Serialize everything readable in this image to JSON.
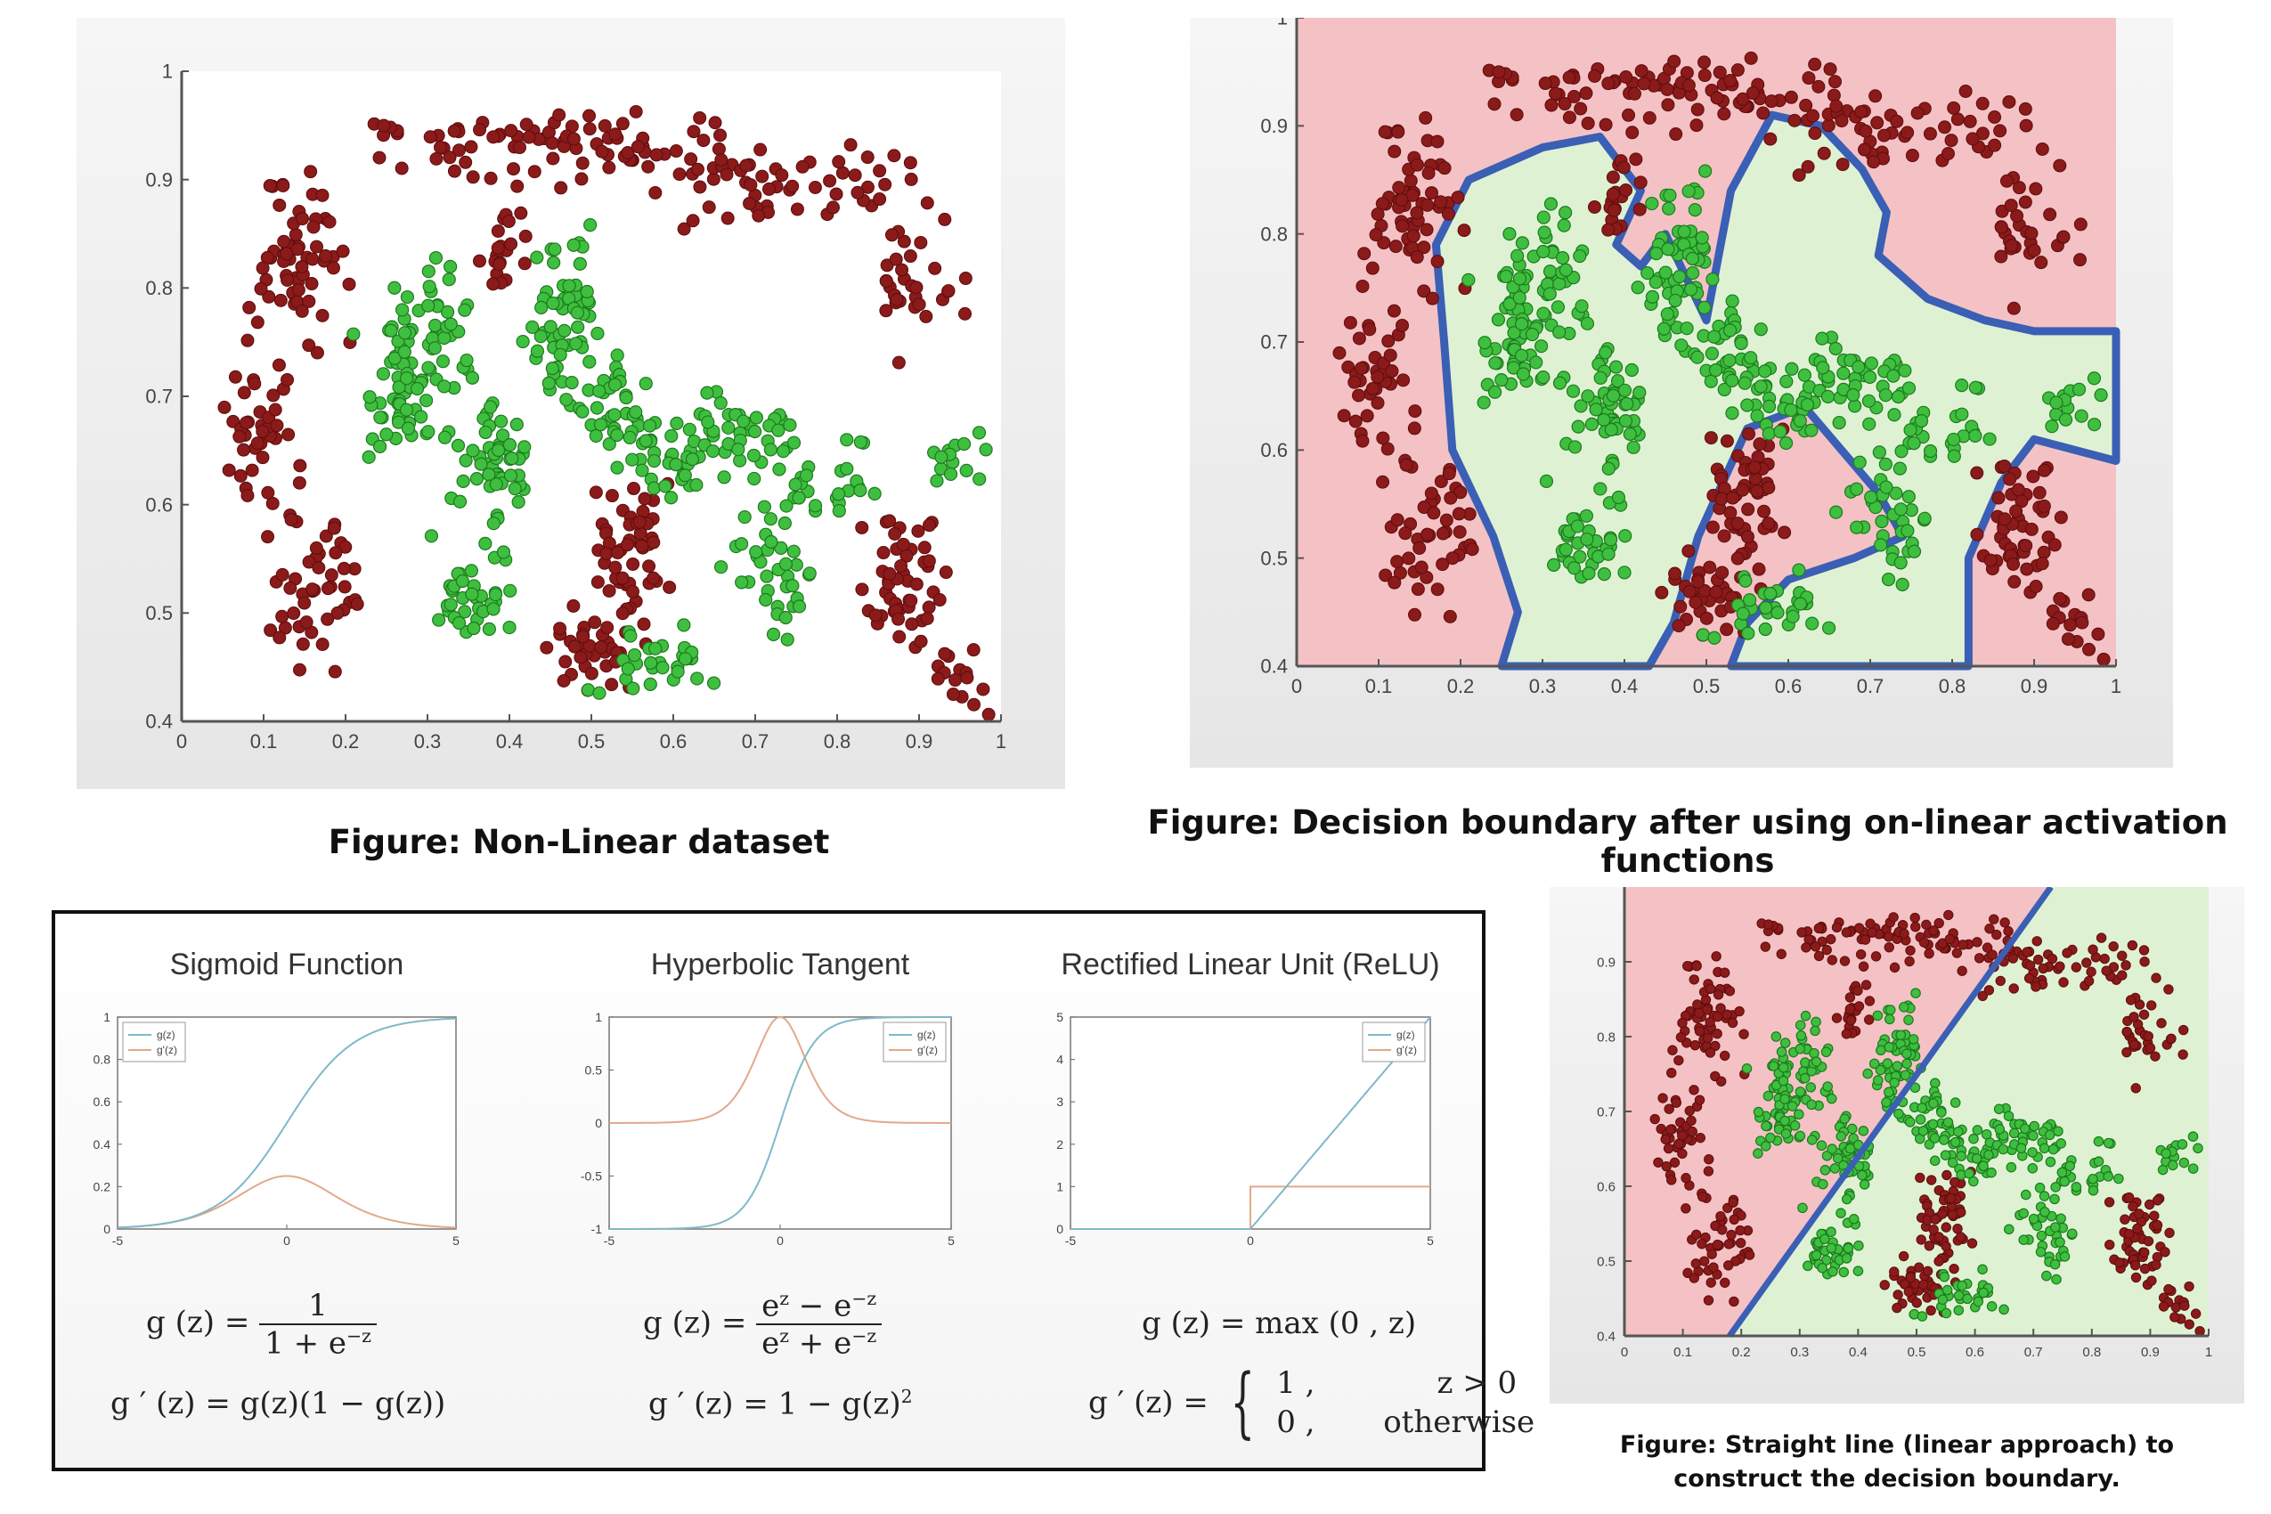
{
  "captions": {
    "dataset": "Figure: Non-Linear dataset",
    "boundary": "Figure: Decision boundary after using on-linear activation functions",
    "linear_line1": "Figure: Straight line (linear approach) to",
    "linear_line2": "construct the decision boundary."
  },
  "formulas": {
    "sigmoid_g_lhs": "g (z) =",
    "sigmoid_g_num": "1",
    "sigmoid_g_den": "1 + e",
    "sigmoid_g_den_sup": "−z",
    "sigmoid_dg": "g ′ (z) =  g(z)(1 − g(z))",
    "tanh_g_lhs": "g (z) =",
    "tanh_g_num_a": "e",
    "tanh_g_num_sup1": "z",
    "tanh_g_num_b": " − e",
    "tanh_g_num_sup2": "−z",
    "tanh_g_den_a": "e",
    "tanh_g_den_sup1": "z",
    "tanh_g_den_b": " + e",
    "tanh_g_den_sup2": "−z",
    "tanh_dg": "g ′ (z) =  1 − g(z)",
    "tanh_dg_sup": "2",
    "relu_g": "g (z) =  max (0 , z)",
    "relu_dg_lhs": "g ′ (z) =",
    "relu_case1_val": "1 ,",
    "relu_case1_cond": "z > 0",
    "relu_case2_val": "0 ,",
    "relu_case2_cond": "otherwise"
  },
  "chart_data": [
    {
      "id": "non-linear-dataset",
      "type": "scatter",
      "title": "",
      "xlim": [
        0,
        1
      ],
      "ylim": [
        0.4,
        1
      ],
      "x_ticks": [
        "0",
        "0.1",
        "0.2",
        "0.3",
        "0.4",
        "0.5",
        "0.6",
        "0.7",
        "0.8",
        "0.9",
        "1"
      ],
      "y_ticks": [
        "0.4",
        "0.5",
        "0.6",
        "0.7",
        "0.8",
        "0.9",
        "1"
      ],
      "background": "#ffffff",
      "colors": {
        "class_a": "#8b1a1a",
        "class_b": "#2ea82e"
      },
      "point_counts_approx": {
        "class_a": 560,
        "class_b": 420
      }
    },
    {
      "id": "nonlinear-decision-boundary",
      "type": "scatter",
      "title": "",
      "xlim": [
        0,
        1
      ],
      "ylim": [
        0.4,
        1
      ],
      "x_ticks": [
        "0",
        "0.1",
        "0.2",
        "0.3",
        "0.4",
        "0.5",
        "0.6",
        "0.7",
        "0.8",
        "0.9",
        "1"
      ],
      "y_ticks": [
        "0.4",
        "0.5",
        "0.6",
        "0.7",
        "0.8",
        "0.9",
        "1"
      ],
      "region_colors": {
        "class_a": "#f4c2c4",
        "class_b": "#def2d3"
      },
      "boundary_color": "#3a5fb5",
      "boundary_polygon_main": [
        [
          0.25,
          0.4
        ],
        [
          0.27,
          0.45
        ],
        [
          0.24,
          0.52
        ],
        [
          0.19,
          0.6
        ],
        [
          0.18,
          0.7
        ],
        [
          0.17,
          0.79
        ],
        [
          0.21,
          0.85
        ],
        [
          0.3,
          0.88
        ],
        [
          0.37,
          0.89
        ],
        [
          0.42,
          0.84
        ],
        [
          0.39,
          0.79
        ],
        [
          0.42,
          0.77
        ],
        [
          0.45,
          0.8
        ],
        [
          0.5,
          0.72
        ],
        [
          0.53,
          0.84
        ],
        [
          0.58,
          0.91
        ],
        [
          0.64,
          0.9
        ],
        [
          0.69,
          0.86
        ],
        [
          0.72,
          0.82
        ],
        [
          0.71,
          0.78
        ],
        [
          0.77,
          0.74
        ],
        [
          0.84,
          0.72
        ],
        [
          0.9,
          0.71
        ],
        [
          1.0,
          0.71
        ],
        [
          1.0,
          0.59
        ],
        [
          0.9,
          0.61
        ],
        [
          0.86,
          0.57
        ],
        [
          0.82,
          0.5
        ],
        [
          0.82,
          0.4
        ],
        [
          0.53,
          0.4
        ],
        [
          0.55,
          0.44
        ],
        [
          0.6,
          0.48
        ],
        [
          0.68,
          0.5
        ],
        [
          0.74,
          0.52
        ],
        [
          0.71,
          0.56
        ],
        [
          0.62,
          0.64
        ],
        [
          0.55,
          0.62
        ],
        [
          0.49,
          0.52
        ],
        [
          0.46,
          0.44
        ],
        [
          0.43,
          0.4
        ]
      ],
      "point_counts_approx": {
        "class_a": 560,
        "class_b": 420
      }
    },
    {
      "id": "linear-decision-boundary",
      "type": "scatter",
      "title": "",
      "xlim": [
        0,
        1
      ],
      "ylim": [
        0.4,
        1
      ],
      "x_ticks": [
        "0",
        "0.1",
        "0.2",
        "0.3",
        "0.4",
        "0.5",
        "0.6",
        "0.7",
        "0.8",
        "0.9",
        "1"
      ],
      "y_ticks": [
        "0.4",
        "0.5",
        "0.6",
        "0.7",
        "0.8",
        "0.9"
      ],
      "region_colors": {
        "class_a": "#f4c2c4",
        "class_b": "#def2d3"
      },
      "boundary_color": "#3a5fb5",
      "boundary_line": [
        [
          0.18,
          0.4
        ],
        [
          0.73,
          1.0
        ]
      ],
      "point_counts_approx": {
        "class_a": 560,
        "class_b": 420
      }
    },
    {
      "id": "sigmoid",
      "type": "line",
      "title": "Sigmoid Function",
      "xlim": [
        -5,
        5
      ],
      "ylim": [
        0,
        1
      ],
      "x_ticks": [
        "-5",
        "0",
        "5"
      ],
      "y_ticks": [
        "0",
        "0.2",
        "0.4",
        "0.6",
        "0.8",
        "1"
      ],
      "legend": [
        "g(z)",
        "g'(z)"
      ],
      "legend_position": "top-left",
      "series_colors": [
        "#7fb9c9",
        "#e2a98a"
      ],
      "function": "sigmoid"
    },
    {
      "id": "tanh",
      "type": "line",
      "title": "Hyperbolic Tangent",
      "xlim": [
        -5,
        5
      ],
      "ylim": [
        -1,
        1
      ],
      "x_ticks": [
        "-5",
        "0",
        "5"
      ],
      "y_ticks": [
        "-1",
        "-0.5",
        "0",
        "0.5",
        "1"
      ],
      "legend": [
        "g(z)",
        "g'(z)"
      ],
      "legend_position": "top-right",
      "series_colors": [
        "#7fb9c9",
        "#e2a98a"
      ],
      "function": "tanh"
    },
    {
      "id": "relu",
      "type": "line",
      "title": "Rectified Linear Unit (ReLU)",
      "xlim": [
        -5,
        5
      ],
      "ylim": [
        0,
        5
      ],
      "x_ticks": [
        "-5",
        "0",
        "5"
      ],
      "y_ticks": [
        "0",
        "1",
        "2",
        "3",
        "4",
        "5"
      ],
      "legend": [
        "g(z)",
        "g'(z)"
      ],
      "legend_position": "top-right",
      "series_colors": [
        "#7fb9c9",
        "#e2a98a"
      ],
      "function": "relu"
    }
  ]
}
